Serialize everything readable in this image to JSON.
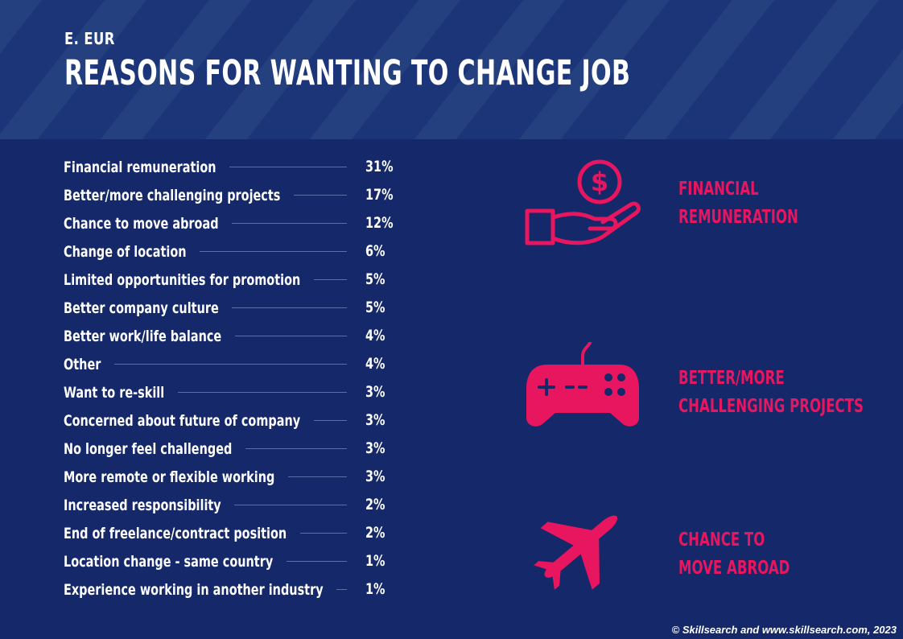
{
  "header": {
    "region": "E. EUR",
    "title": "REASONS FOR WANTING TO CHANGE JOB"
  },
  "reasons": [
    {
      "label": "Financial remuneration",
      "value": "31%"
    },
    {
      "label": "Better/more challenging projects",
      "value": "17%"
    },
    {
      "label": "Chance to move abroad",
      "value": "12%"
    },
    {
      "label": "Change of location",
      "value": "6%"
    },
    {
      "label": "Limited opportunities for promotion",
      "value": "5%"
    },
    {
      "label": "Better company culture",
      "value": "5%"
    },
    {
      "label": "Better work/life balance",
      "value": "4%"
    },
    {
      "label": "Other",
      "value": "4%"
    },
    {
      "label": "Want to re-skill",
      "value": "3%"
    },
    {
      "label": "Concerned about future of company",
      "value": "3%"
    },
    {
      "label": "No longer feel challenged",
      "value": "3%"
    },
    {
      "label": "More remote or flexible working",
      "value": "3%"
    },
    {
      "label": "Increased responsibility",
      "value": "2%"
    },
    {
      "label": "End of freelance/contract position",
      "value": "2%"
    },
    {
      "label": "Location change - same country",
      "value": "1%"
    },
    {
      "label": "Experience working in another industry",
      "value": "1%"
    }
  ],
  "callouts": {
    "financial": {
      "line1": "FINANCIAL",
      "line2": "REMUNERATION",
      "icon": "money-hand-icon"
    },
    "projects": {
      "line1": "BETTER/MORE",
      "line2": "CHALLENGING PROJECTS",
      "icon": "gamepad-icon"
    },
    "abroad": {
      "line1": "CHANCE TO",
      "line2": "MOVE ABROAD",
      "icon": "airplane-icon"
    }
  },
  "colors": {
    "background": "#14286a",
    "header_band": "#1c3478",
    "accent": "#e8155f",
    "text": "#ffffff"
  },
  "footer": {
    "credit": "© Skillsearch and www.skillsearch.com, 2023"
  }
}
